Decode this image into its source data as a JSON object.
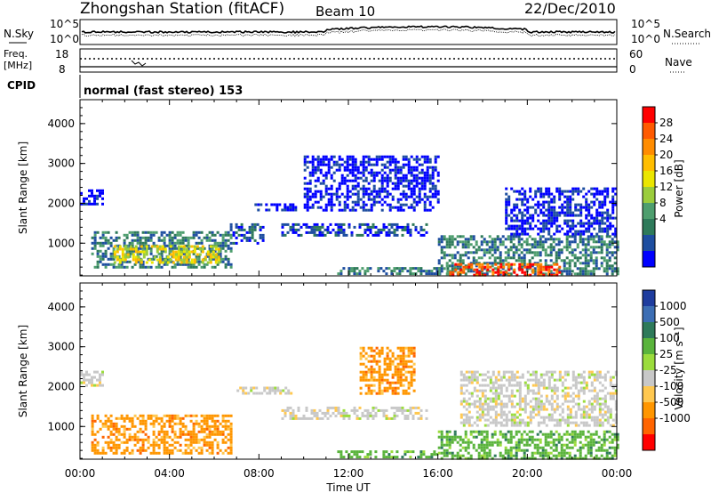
{
  "header": {
    "station": "Zhongshan Station (fitACF)",
    "beam": "Beam 10",
    "date": "22/Dec/2010"
  },
  "top_panels": {
    "nsky_label": "N.Sky",
    "nsearch_label": "N.Search",
    "nsky_ticks": [
      "10^5",
      "10^0"
    ],
    "freq_label_1": "Freq.",
    "freq_label_2": "[MHz]",
    "freq_ticks": [
      "18",
      "8"
    ],
    "nave_label": "Nave",
    "nave_ticks": [
      "60",
      "0"
    ],
    "cpid_label": "CPID",
    "cpid_text": "normal (fast stereo) 153"
  },
  "chart_data": [
    {
      "type": "heatmap",
      "name": "power",
      "ylabel": "Slant Range [km]",
      "xlabel": "Time UT",
      "x_ticks": [
        "00:00",
        "04:00",
        "08:00",
        "12:00",
        "16:00",
        "20:00",
        "00:00"
      ],
      "y_ticks": [
        1000,
        2000,
        3000,
        4000
      ],
      "xlim_hours": [
        0,
        24
      ],
      "ylim_km": [
        180,
        4600
      ],
      "colorbar": {
        "label": "Power [dB]",
        "ticks": [
          "28",
          "24",
          "20",
          "16",
          "12",
          "8",
          "4"
        ],
        "colors": [
          "#ff0000",
          "#ff5a00",
          "#ff8c00",
          "#ffbe00",
          "#ebe600",
          "#9bcd3c",
          "#4e9e6e",
          "#2e7a5a",
          "#1e4ea0",
          "#0000ff"
        ]
      },
      "regions": [
        {
          "t": [
            0.0,
            1.0
          ],
          "r": [
            2000,
            2350
          ],
          "level": 0
        },
        {
          "t": [
            0.5,
            6.7
          ],
          "r": [
            400,
            1300
          ],
          "level": 2
        },
        {
          "t": [
            1.5,
            6.2
          ],
          "r": [
            500,
            950
          ],
          "level": 5
        },
        {
          "t": [
            6.7,
            8.2
          ],
          "r": [
            1000,
            1500
          ],
          "level": 1
        },
        {
          "t": [
            7.8,
            9.6
          ],
          "r": [
            1800,
            2000
          ],
          "level": 0
        },
        {
          "t": [
            9.0,
            15.5
          ],
          "r": [
            1200,
            1500
          ],
          "level": 1
        },
        {
          "t": [
            10.0,
            16.0
          ],
          "r": [
            1800,
            3200
          ],
          "level": 0
        },
        {
          "t": [
            11.5,
            16.5
          ],
          "r": [
            200,
            400
          ],
          "level": 2
        },
        {
          "t": [
            16.0,
            24.0
          ],
          "r": [
            200,
            1200
          ],
          "level": 2
        },
        {
          "t": [
            16.5,
            21.5
          ],
          "r": [
            180,
            500
          ],
          "level": 8
        },
        {
          "t": [
            19.0,
            24.0
          ],
          "r": [
            1200,
            2400
          ],
          "level": 0
        }
      ]
    },
    {
      "type": "heatmap",
      "name": "velocity",
      "ylabel": "Slant Range [km]",
      "xlabel": "Time UT",
      "x_ticks": [
        "00:00",
        "04:00",
        "08:00",
        "12:00",
        "16:00",
        "20:00",
        "00:00"
      ],
      "y_ticks": [
        1000,
        2000,
        3000,
        4000
      ],
      "xlim_hours": [
        0,
        24
      ],
      "ylim_km": [
        180,
        4600
      ],
      "colorbar": {
        "label": "Velocity [m s⁻¹]",
        "ticks": [
          "1000",
          "500",
          "100",
          "25",
          "-25",
          "-100",
          "-500",
          "-1000"
        ],
        "colors": [
          "#1e3c9e",
          "#3c6eb4",
          "#2e7a5a",
          "#5ab43c",
          "#9bdc3c",
          "#c8c8c8",
          "#ffc850",
          "#ff9600",
          "#ff6400",
          "#ff0000"
        ]
      },
      "regions": [
        {
          "t": [
            0.0,
            1.0
          ],
          "r": [
            2000,
            2400
          ],
          "level": "grey"
        },
        {
          "t": [
            0.5,
            6.7
          ],
          "r": [
            350,
            1300
          ],
          "level": "orange"
        },
        {
          "t": [
            7.0,
            9.5
          ],
          "r": [
            1800,
            2000
          ],
          "level": "grey"
        },
        {
          "t": [
            9.0,
            15.5
          ],
          "r": [
            1200,
            1500
          ],
          "level": "grey"
        },
        {
          "t": [
            11.5,
            16.0
          ],
          "r": [
            200,
            400
          ],
          "level": "green"
        },
        {
          "t": [
            12.5,
            15.0
          ],
          "r": [
            1800,
            3000
          ],
          "level": "orange"
        },
        {
          "t": [
            16.0,
            24.0
          ],
          "r": [
            200,
            900
          ],
          "level": "green"
        },
        {
          "t": [
            17.0,
            24.0
          ],
          "r": [
            1000,
            2400
          ],
          "level": "grey"
        }
      ]
    }
  ],
  "axis": {
    "time_label": "Time UT",
    "slant_range_label": "Slant Range [km]"
  }
}
